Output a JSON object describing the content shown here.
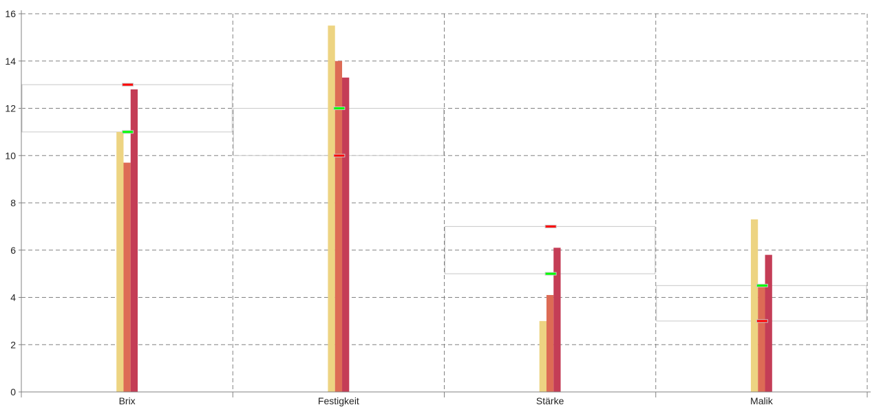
{
  "chart_data": {
    "type": "bar",
    "title": "",
    "xlabel": "",
    "ylabel": "",
    "ylim": [
      0,
      16
    ],
    "yticks": [
      0,
      2,
      4,
      6,
      8,
      10,
      12,
      14,
      16
    ],
    "grid": true,
    "categories": [
      "Brix",
      "Festigkeit",
      "Stärke",
      "Malik"
    ],
    "series": [
      {
        "color": "#EDD482",
        "values": [
          11.0,
          15.5,
          3.0,
          7.3
        ]
      },
      {
        "color": "#DD6B55",
        "values": [
          9.7,
          14.0,
          4.1,
          4.5
        ]
      },
      {
        "color": "#C43D56",
        "values": [
          12.8,
          13.3,
          6.1,
          5.8
        ]
      }
    ],
    "target_ranges": [
      {
        "low": 11,
        "high": 13,
        "red_marker": 13,
        "green_marker": 11
      },
      {
        "low": 10,
        "high": 12,
        "red_marker": 10,
        "green_marker": 12
      },
      {
        "low": 5,
        "high": 7,
        "red_marker": 7,
        "green_marker": 5
      },
      {
        "low": 3,
        "high": 4.5,
        "red_marker": 3,
        "green_marker": 4.5
      }
    ],
    "colors": {
      "grid": "#808080",
      "range_box": "#C8C8C8",
      "red_marker": "#FF0000",
      "green_marker": "#00FF00"
    }
  }
}
